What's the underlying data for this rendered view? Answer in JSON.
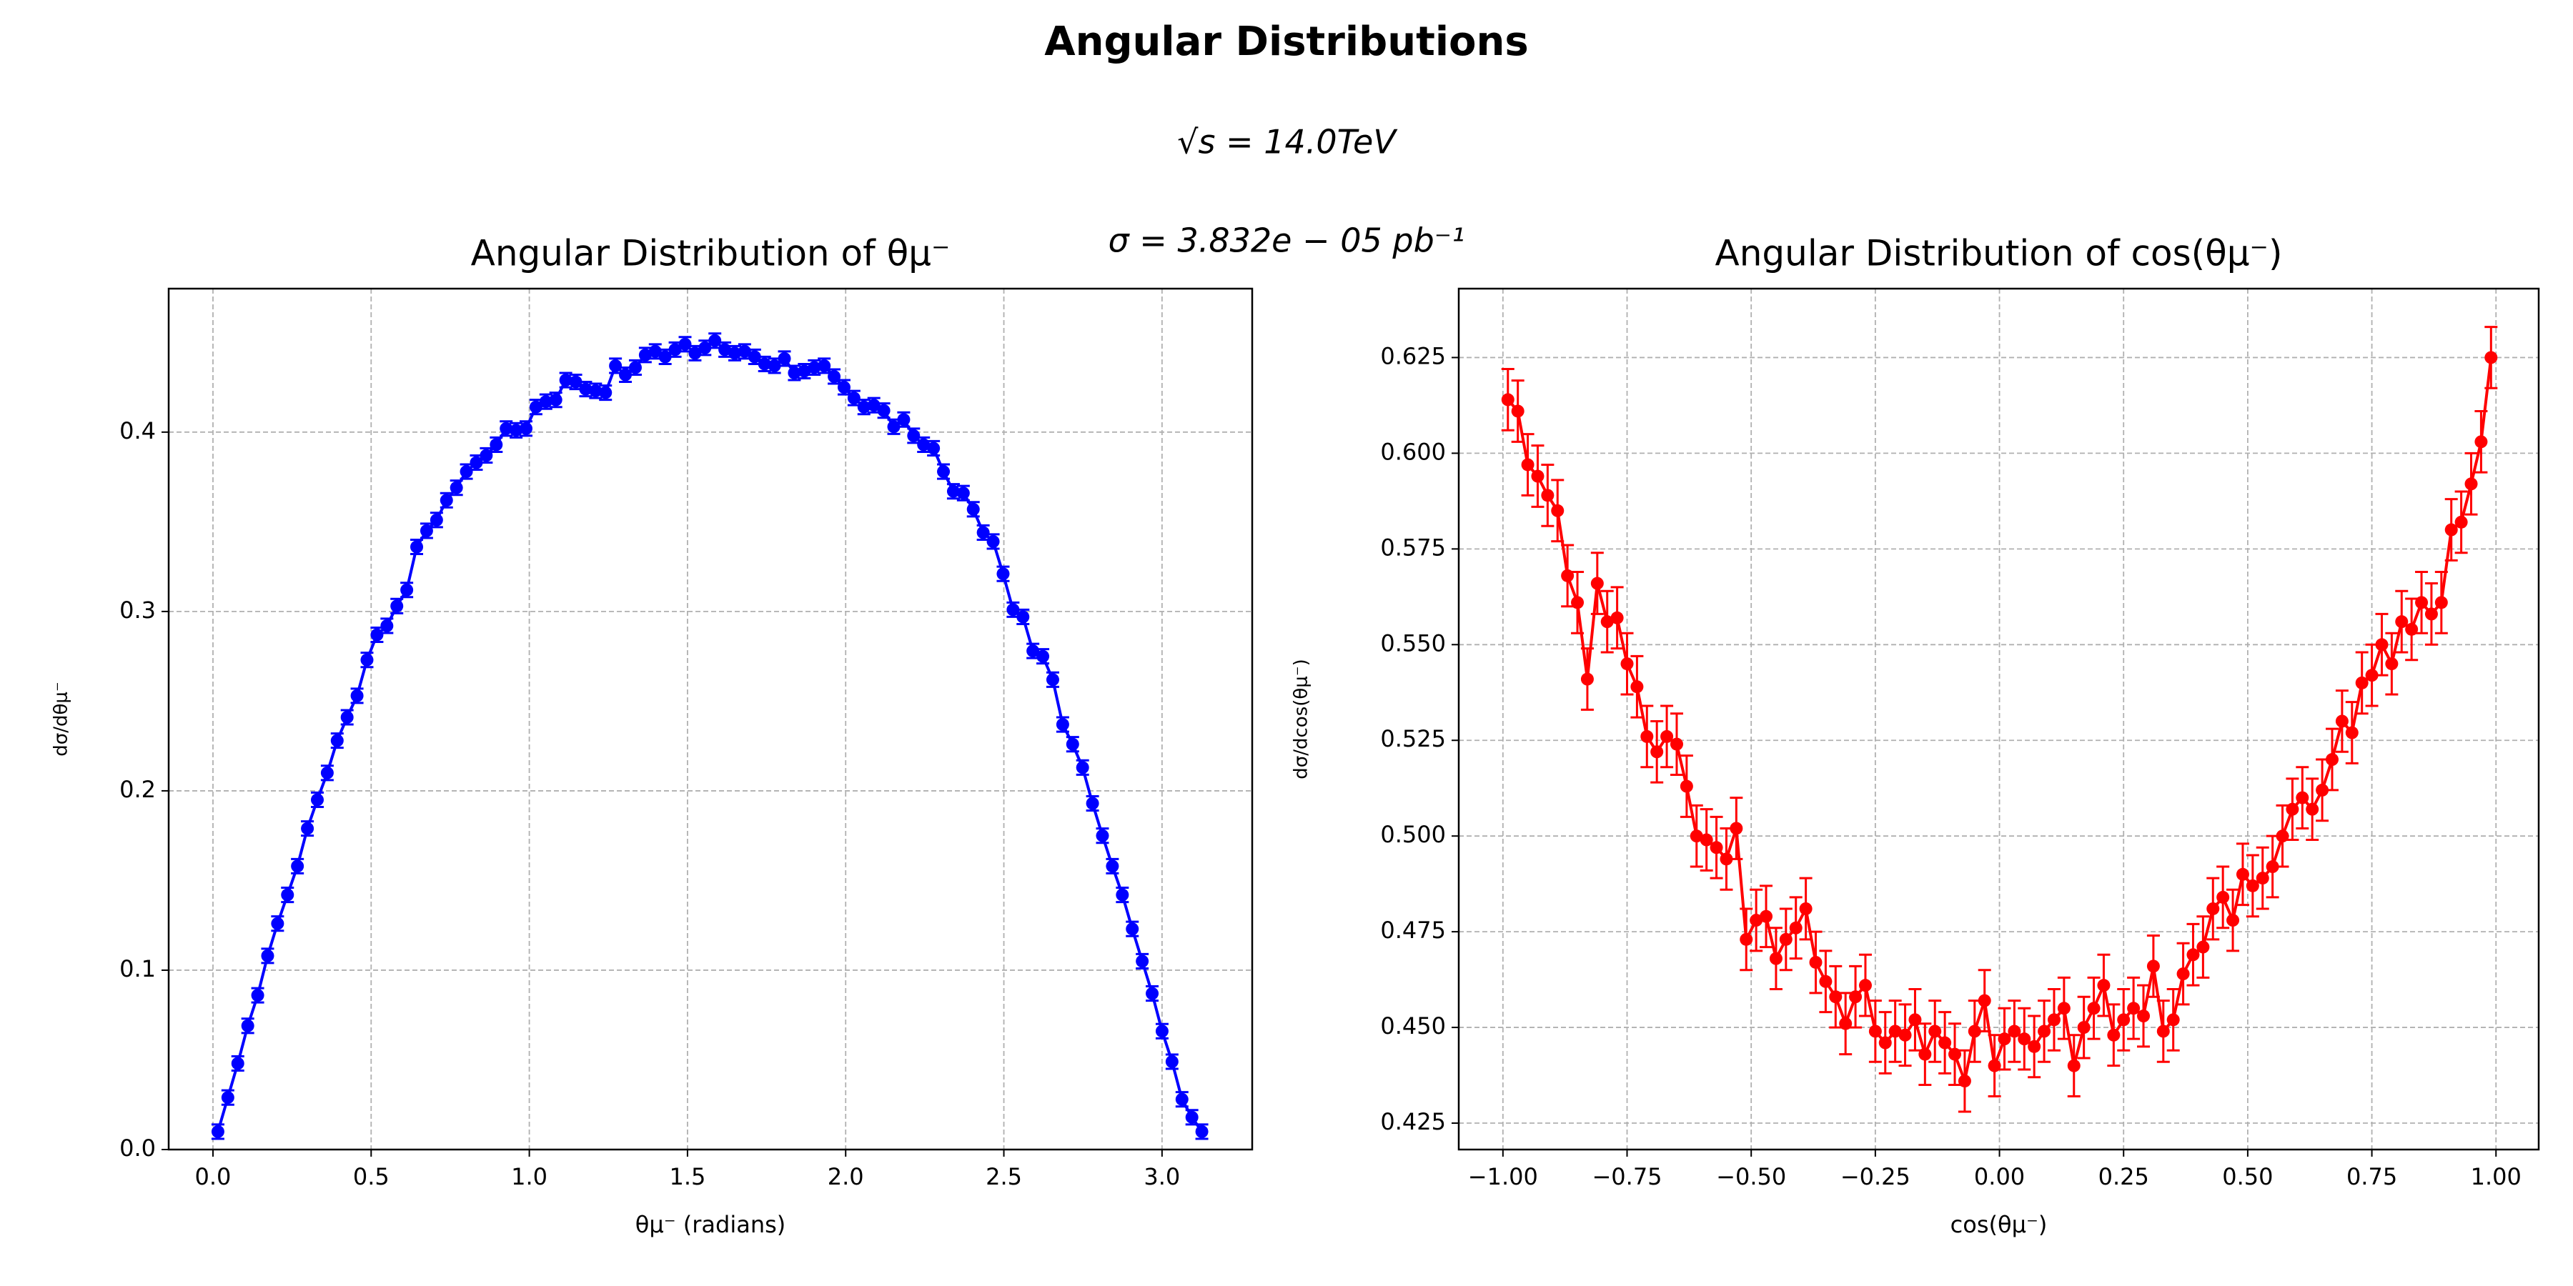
{
  "title": "Angular Distributions",
  "annotations": [
    "√s = 14.0TeV",
    "σ = 3.832e − 05 pb⁻¹"
  ],
  "chart_data": [
    {
      "type": "line",
      "title": "Angular Distribution of θμ⁻",
      "xlabel": "θμ⁻ (radians)",
      "ylabel": "dσ/dθμ⁻",
      "color": "#0000ff",
      "yerr": 0.004,
      "grid": true,
      "xlim": [
        -0.14,
        3.285
      ],
      "ylim": [
        0,
        0.48
      ],
      "xticks": [
        {
          "value": 0,
          "label": "0.0"
        },
        0.5,
        {
          "value": 1,
          "label": "1.0"
        },
        1.5,
        {
          "value": 2,
          "label": "2.0"
        },
        2.5,
        {
          "value": 3,
          "label": "3.0"
        }
      ],
      "yticks": [
        {
          "value": 0,
          "label": "0.0"
        },
        0.1,
        0.2,
        0.3,
        0.4
      ],
      "x": [
        0.0157,
        0.0471,
        0.0785,
        0.11,
        0.1414,
        0.1728,
        0.2042,
        0.2356,
        0.267,
        0.2985,
        0.3299,
        0.3613,
        0.3927,
        0.4241,
        0.4555,
        0.4869,
        0.5184,
        0.5498,
        0.5812,
        0.6126,
        0.644,
        0.6754,
        0.7069,
        0.7383,
        0.7697,
        0.8011,
        0.8325,
        0.8639,
        0.8954,
        0.9268,
        0.9582,
        0.9896,
        1.021,
        1.0524,
        1.0838,
        1.1153,
        1.1467,
        1.1781,
        1.2095,
        1.2409,
        1.2723,
        1.3037,
        1.3352,
        1.3666,
        1.398,
        1.4294,
        1.4608,
        1.4923,
        1.5237,
        1.5551,
        1.5865,
        1.6179,
        1.6493,
        1.6807,
        1.7122,
        1.7436,
        1.775,
        1.8064,
        1.8378,
        1.8692,
        1.9007,
        1.9321,
        1.9635,
        1.9949,
        2.0263,
        2.0577,
        2.0892,
        2.1206,
        2.152,
        2.1834,
        2.2148,
        2.2462,
        2.2777,
        2.3091,
        2.3405,
        2.3719,
        2.4033,
        2.4347,
        2.4662,
        2.4976,
        2.529,
        2.5604,
        2.5918,
        2.6232,
        2.6546,
        2.6861,
        2.7175,
        2.7489,
        2.7803,
        2.8117,
        2.8431,
        2.8746,
        2.906,
        2.9374,
        2.9688,
        3.0002,
        3.0316,
        3.0631,
        3.0945,
        3.1259
      ],
      "values": [
        0.01,
        0.029,
        0.048,
        0.069,
        0.086,
        0.108,
        0.126,
        0.142,
        0.158,
        0.179,
        0.195,
        0.21,
        0.228,
        0.241,
        0.253,
        0.273,
        0.287,
        0.292,
        0.303,
        0.312,
        0.336,
        0.345,
        0.351,
        0.362,
        0.369,
        0.378,
        0.383,
        0.387,
        0.393,
        0.402,
        0.401,
        0.402,
        0.414,
        0.417,
        0.418,
        0.429,
        0.428,
        0.424,
        0.423,
        0.422,
        0.437,
        0.432,
        0.436,
        0.443,
        0.445,
        0.442,
        0.446,
        0.449,
        0.444,
        0.447,
        0.451,
        0.446,
        0.444,
        0.445,
        0.442,
        0.438,
        0.437,
        0.441,
        0.433,
        0.434,
        0.436,
        0.437,
        0.431,
        0.425,
        0.419,
        0.414,
        0.415,
        0.412,
        0.403,
        0.407,
        0.398,
        0.393,
        0.391,
        0.378,
        0.367,
        0.366,
        0.357,
        0.344,
        0.339,
        0.321,
        0.301,
        0.297,
        0.278,
        0.275,
        0.262,
        0.237,
        0.226,
        0.213,
        0.193,
        0.175,
        0.158,
        0.142,
        0.123,
        0.105,
        0.087,
        0.066,
        0.049,
        0.028,
        0.018,
        0.01
      ]
    },
    {
      "type": "line",
      "title": "Angular Distribution of cos(θμ⁻)",
      "xlabel": "cos(θμ⁻)",
      "ylabel": "dσ/dcos(θμ⁻)",
      "color": "#ff0000",
      "yerr": 0.008,
      "grid": true,
      "xlim": [
        -1.089,
        1.086
      ],
      "ylim": [
        0.4181,
        0.643
      ],
      "xticks": [
        {
          "value": -1,
          "label": "−1.00"
        },
        {
          "value": -0.75,
          "label": "−0.75"
        },
        {
          "value": -0.5,
          "label": "−0.50"
        },
        {
          "value": -0.25,
          "label": "−0.25"
        },
        {
          "value": 0,
          "label": "0.00"
        },
        {
          "value": 0.25,
          "label": "0.25"
        },
        {
          "value": 0.5,
          "label": "0.50"
        },
        {
          "value": 0.75,
          "label": "0.75"
        },
        {
          "value": 1,
          "label": "1.00"
        }
      ],
      "yticks": [
        0.425,
        {
          "value": 0.45,
          "label": "0.450"
        },
        0.475,
        {
          "value": 0.5,
          "label": "0.500"
        },
        0.525,
        {
          "value": 0.55,
          "label": "0.550"
        },
        0.575,
        {
          "value": 0.6,
          "label": "0.600"
        },
        0.625
      ],
      "x": [
        -0.99,
        -0.97,
        -0.95,
        -0.93,
        -0.91,
        -0.89,
        -0.87,
        -0.85,
        -0.83,
        -0.81,
        -0.79,
        -0.77,
        -0.75,
        -0.73,
        -0.71,
        -0.69,
        -0.67,
        -0.65,
        -0.63,
        -0.61,
        -0.59,
        -0.57,
        -0.55,
        -0.53,
        -0.51,
        -0.49,
        -0.47,
        -0.45,
        -0.43,
        -0.41,
        -0.39,
        -0.37,
        -0.35,
        -0.33,
        -0.31,
        -0.29,
        -0.27,
        -0.25,
        -0.23,
        -0.21,
        -0.19,
        -0.17,
        -0.15,
        -0.13,
        -0.11,
        -0.09,
        -0.07,
        -0.05,
        -0.03,
        -0.01,
        0.01,
        0.03,
        0.05,
        0.07,
        0.09,
        0.11,
        0.13,
        0.15,
        0.17,
        0.19,
        0.21,
        0.23,
        0.25,
        0.27,
        0.29,
        0.31,
        0.33,
        0.35,
        0.37,
        0.39,
        0.41,
        0.43,
        0.45,
        0.47,
        0.49,
        0.51,
        0.53,
        0.55,
        0.57,
        0.59,
        0.61,
        0.63,
        0.65,
        0.67,
        0.69,
        0.71,
        0.73,
        0.75,
        0.77,
        0.79,
        0.81,
        0.83,
        0.85,
        0.87,
        0.89,
        0.91,
        0.93,
        0.95,
        0.97,
        0.99
      ],
      "values": [
        0.614,
        0.611,
        0.597,
        0.594,
        0.589,
        0.585,
        0.568,
        0.561,
        0.541,
        0.566,
        0.556,
        0.557,
        0.545,
        0.539,
        0.526,
        0.522,
        0.526,
        0.524,
        0.513,
        0.5,
        0.499,
        0.497,
        0.494,
        0.502,
        0.473,
        0.478,
        0.479,
        0.468,
        0.473,
        0.476,
        0.481,
        0.467,
        0.462,
        0.458,
        0.451,
        0.458,
        0.461,
        0.449,
        0.446,
        0.449,
        0.448,
        0.452,
        0.443,
        0.449,
        0.446,
        0.443,
        0.436,
        0.449,
        0.457,
        0.44,
        0.447,
        0.449,
        0.447,
        0.445,
        0.449,
        0.452,
        0.455,
        0.44,
        0.45,
        0.455,
        0.461,
        0.448,
        0.452,
        0.455,
        0.453,
        0.466,
        0.449,
        0.452,
        0.464,
        0.469,
        0.471,
        0.481,
        0.484,
        0.478,
        0.49,
        0.487,
        0.489,
        0.492,
        0.5,
        0.507,
        0.51,
        0.507,
        0.512,
        0.52,
        0.53,
        0.527,
        0.54,
        0.542,
        0.55,
        0.545,
        0.556,
        0.554,
        0.561,
        0.558,
        0.561,
        0.58,
        0.582,
        0.592,
        0.603,
        0.625
      ]
    }
  ]
}
